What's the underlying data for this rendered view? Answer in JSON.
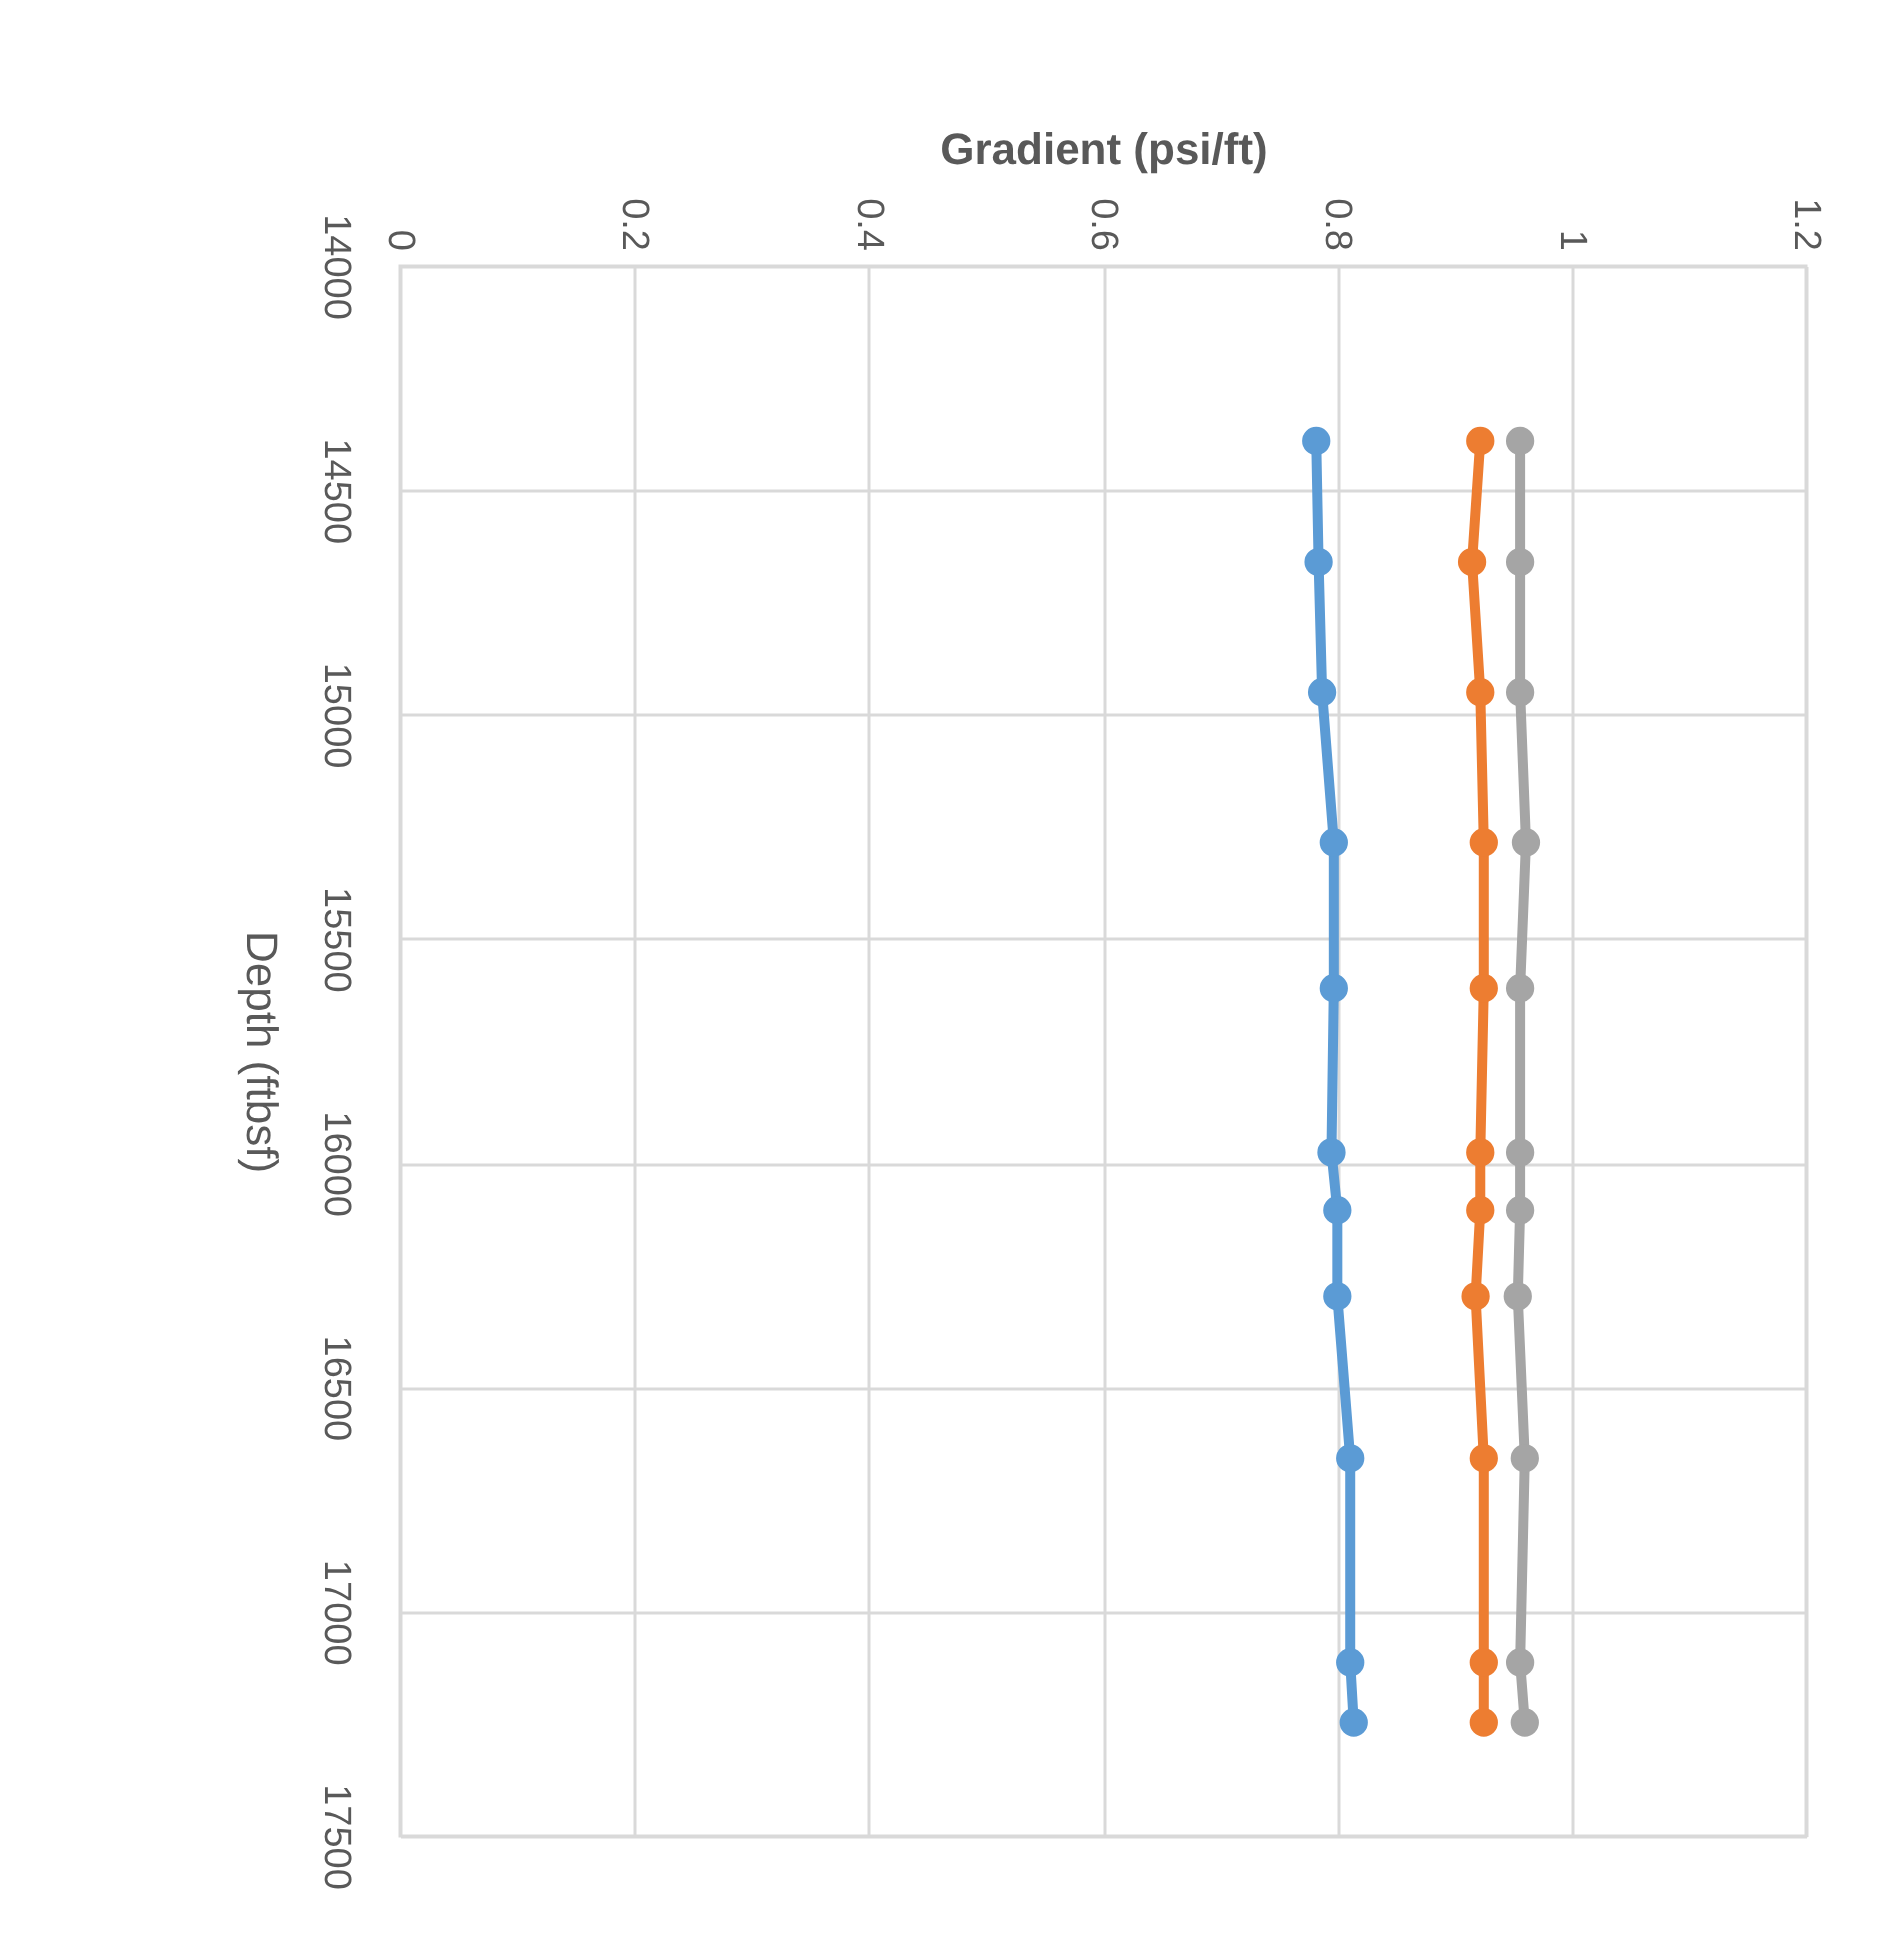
{
  "chart_data": {
    "type": "line",
    "xlabel": "Gradient (psi/ft)",
    "ylabel": "Depth (ftbsf)",
    "series": [
      {
        "color": "#5b9bd5",
        "x": [
          0.782,
          0.784,
          0.787,
          0.797,
          0.797,
          0.795,
          0.8,
          0.8,
          0.811,
          0.811,
          0.814
        ],
        "values": [
          14390,
          14660,
          14950,
          15285,
          15610,
          15976,
          16105,
          16297,
          16658,
          17113,
          17247
        ]
      },
      {
        "color": "#ed7d31",
        "x": [
          0.922,
          0.915,
          0.922,
          0.925,
          0.925,
          0.922,
          0.922,
          0.918,
          0.925,
          0.925,
          0.925
        ],
        "values": [
          14390,
          14660,
          14950,
          15285,
          15610,
          15976,
          16105,
          16297,
          16658,
          17113,
          17247
        ]
      },
      {
        "color": "#a5a5a5",
        "x": [
          0.956,
          0.956,
          0.956,
          0.961,
          0.956,
          0.956,
          0.956,
          0.954,
          0.96,
          0.956,
          0.96
        ],
        "values": [
          14390,
          14660,
          14950,
          15285,
          15610,
          15976,
          16105,
          16297,
          16658,
          17113,
          17247
        ]
      }
    ],
    "xlim": [
      0,
      1.2
    ],
    "xticks": [
      0,
      0.2,
      0.4,
      0.6,
      0.8,
      1,
      1.2
    ],
    "ylim": [
      17500,
      14000
    ],
    "yticks": [
      14000,
      14500,
      15000,
      15500,
      16000,
      16500,
      17000,
      17500
    ],
    "grid": true,
    "legend": false,
    "marker": "circle",
    "line_style": "solid"
  }
}
